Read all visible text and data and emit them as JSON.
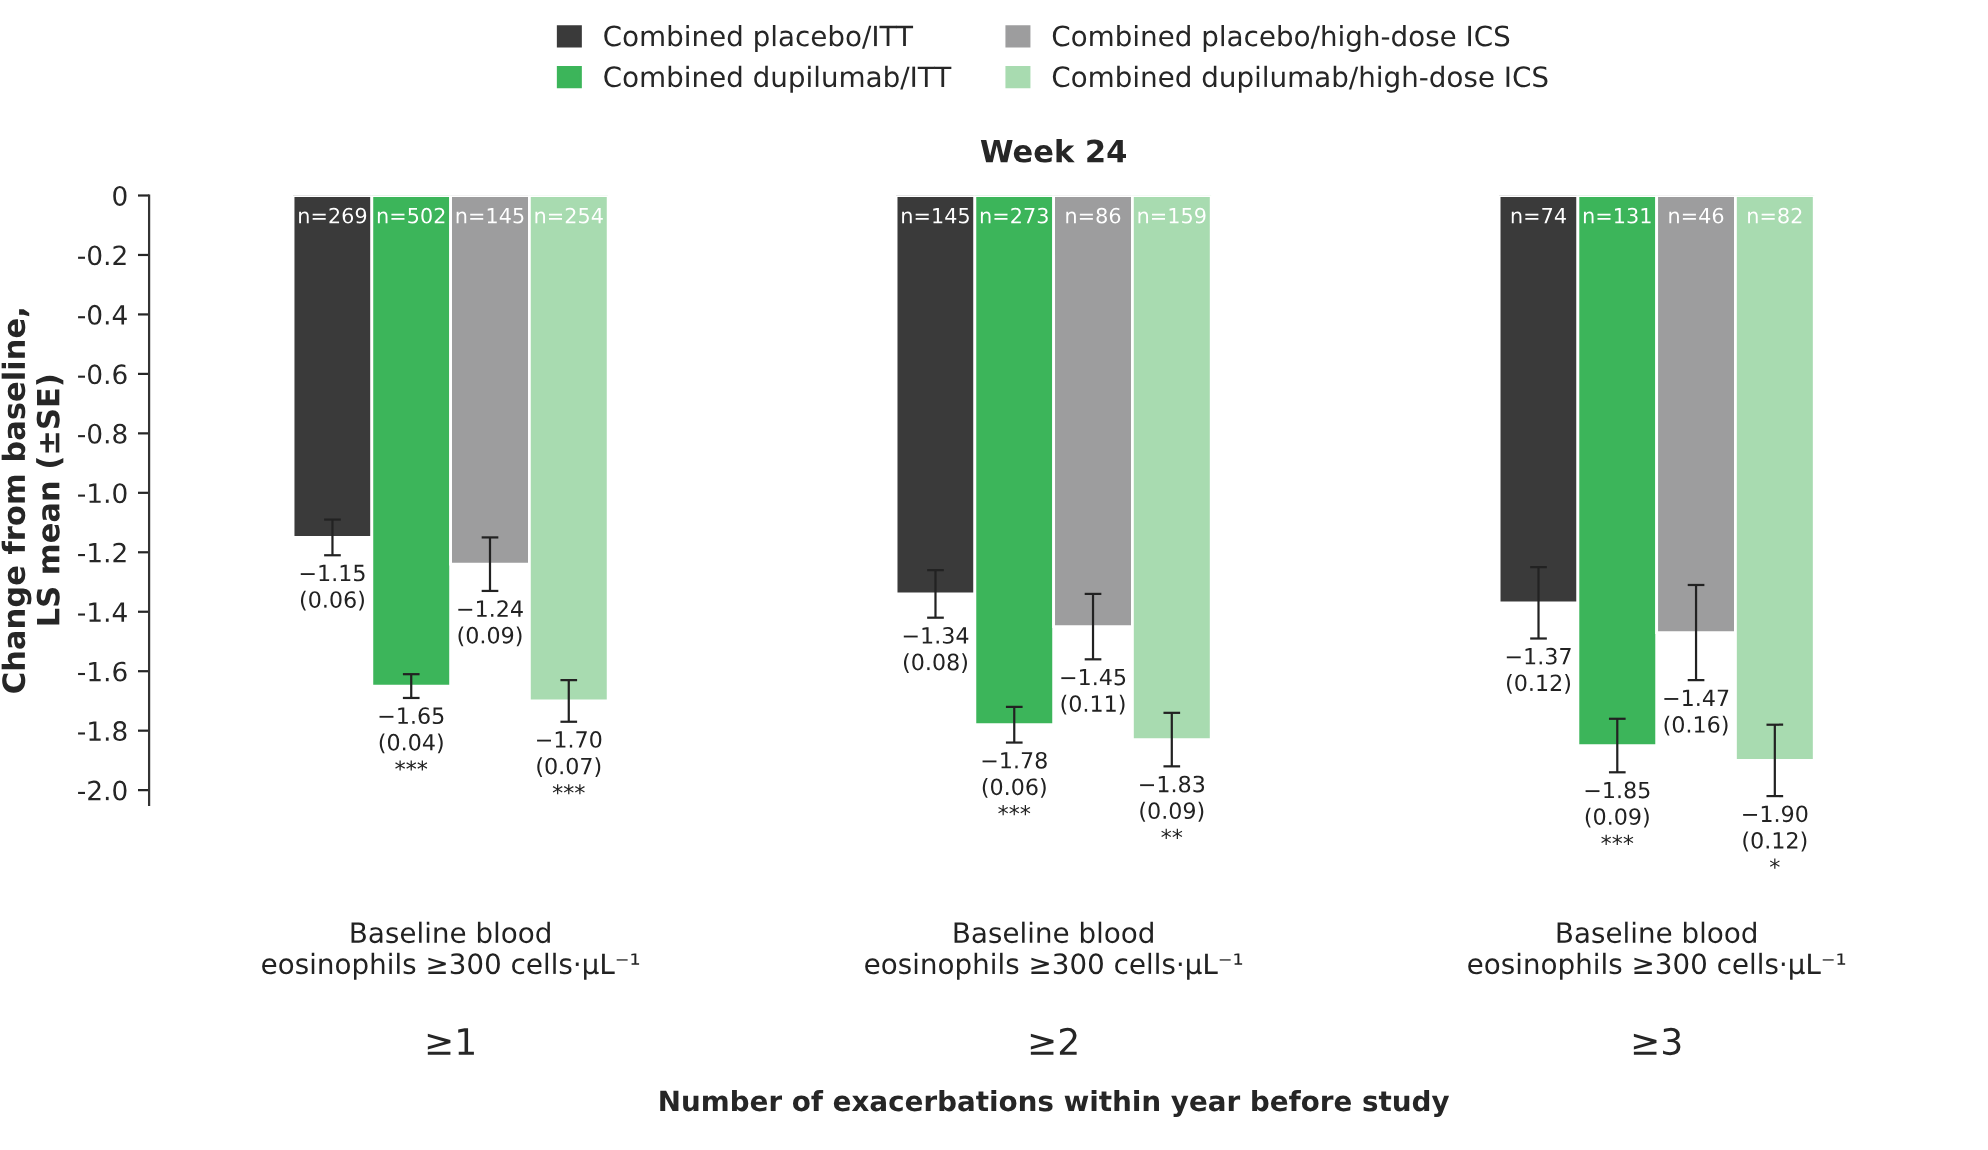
{
  "chart_data": {
    "type": "bar",
    "title": "Week 24",
    "xlabel": "Number of exacerbations within year before study",
    "ylabel": "Change from baseline,\nLS mean (±SE)",
    "categories": [
      "≥1",
      "≥2",
      "≥3"
    ],
    "series": [
      {
        "name": "Combined placebo/ITT",
        "color": "#3a3a3a",
        "values": [
          -1.15,
          -1.34,
          -1.37
        ],
        "errors": [
          0.06,
          0.08,
          0.12
        ],
        "value_labels": [
          "−1.15\n(0.06)",
          "−1.34\n(0.08)",
          "−1.37\n(0.12)"
        ]
      },
      {
        "name": "Combined dupilumab/ITT",
        "color": "#3cb55a",
        "values": [
          -1.65,
          -1.78,
          -1.85
        ],
        "errors": [
          0.04,
          0.06,
          0.09
        ],
        "value_labels": [
          "−1.65\n(0.04)\n***",
          "−1.78\n(0.06)\n***",
          "−1.85\n(0.09)\n***"
        ]
      },
      {
        "name": "Combined placebo/high-dose ICS",
        "color": "#9d9d9e",
        "values": [
          -1.24,
          -1.45,
          -1.47
        ],
        "errors": [
          0.09,
          0.11,
          0.16
        ],
        "value_labels": [
          "−1.24\n(0.09)",
          "−1.45\n(0.11)",
          "−1.47\n(0.16)"
        ]
      },
      {
        "name": "Combined dupilumab/high-dose ICS",
        "color": "#a8dbb0",
        "values": [
          -1.7,
          -1.83,
          -1.9
        ],
        "errors": [
          0.07,
          0.09,
          0.12
        ],
        "value_labels": [
          "−1.70\n(0.07)\n***",
          "−1.83\n(0.09)\n**",
          "−1.90\n(0.12)\n*"
        ]
      }
    ],
    "annotations": [
      "n=269",
      "n=502",
      "n=145",
      "n=254",
      "n=145",
      "n=273",
      "n=86",
      "n=159",
      "n=74",
      "n=131",
      "n=46",
      "n=82",
      "Baseline blood\neosinophils ≥300 cells·µL⁻¹",
      "Baseline blood\neosinophils ≥300 cells·µL⁻¹",
      "Baseline blood\neosinophils ≥300 cells·µL⁻¹"
    ],
    "ylim": [
      -2.05,
      0
    ],
    "yticks": [
      {
        "value": 0,
        "label": "0"
      },
      {
        "value": -0.2,
        "label": "-0.2"
      },
      {
        "value": -0.4,
        "label": "-0.4"
      },
      {
        "value": -0.6,
        "label": "-0.6"
      },
      {
        "value": -0.8,
        "label": "-0.8"
      },
      {
        "value": -1.0,
        "label": "-1.0"
      },
      {
        "value": -1.2,
        "label": "-1.2"
      },
      {
        "value": -1.4,
        "label": "-1.4"
      },
      {
        "value": -1.6,
        "label": "-1.6"
      },
      {
        "value": -1.8,
        "label": "-1.8"
      },
      {
        "value": -2.0,
        "label": "-2.0"
      }
    ],
    "grid": false,
    "legend": "top"
  }
}
